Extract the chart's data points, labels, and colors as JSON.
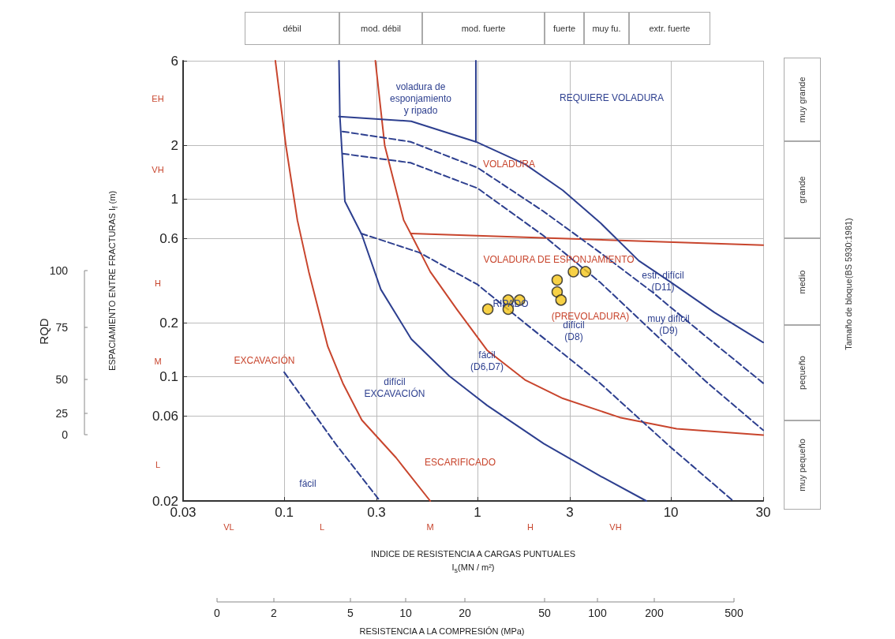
{
  "chart_data": {
    "type": "scatter",
    "xlabel": "INDICE DE RESISTENCIA A CARGAS PUNTUALES\nI$_{s}$(MN / m²)",
    "ylabel": "ESPACIAMIENTO ENTRE FRACTURAS I$_{f}$ (m)",
    "log": "xy",
    "grid": true,
    "xlim": [
      0.03,
      30
    ],
    "xticks": [
      0.03,
      0.1,
      0.3,
      1,
      3,
      10,
      30
    ],
    "ylim": [
      0.02,
      6
    ],
    "yticks": [
      0.02,
      0.06,
      0.1,
      0.2,
      0.6,
      1,
      2,
      6
    ],
    "series": [
      {
        "type": "line",
        "color": "#c8452d",
        "line_style": "solid",
        "x": [
          0.09,
          0.102,
          0.117,
          0.134,
          0.168,
          0.201,
          0.252,
          0.379,
          0.569
        ],
        "values": [
          6,
          2,
          0.76,
          0.39,
          0.148,
          0.092,
          0.057,
          0.035,
          0.02
        ]
      },
      {
        "type": "line",
        "color": "#c8452d",
        "line_style": "solid",
        "x": [
          0.296,
          0.331,
          0.415,
          0.454,
          0.569,
          0.78,
          1.12,
          1.76,
          2.76,
          5.44,
          10.7,
          30
        ],
        "values": [
          6,
          2,
          0.76,
          0.63,
          0.39,
          0.24,
          0.141,
          0.096,
          0.0755,
          0.059,
          0.051,
          0.047
        ]
      },
      {
        "type": "line",
        "color": "#c8452d",
        "line_style": "solid",
        "x": [
          0.454,
          30
        ],
        "values": [
          0.64,
          0.55
        ]
      },
      {
        "type": "line",
        "color": "#2d3f8f",
        "line_style": "solid",
        "x": [
          0.192,
          0.194,
          0.206,
          0.252,
          0.316,
          0.454,
          0.713,
          1.12,
          2.2,
          4.34,
          7.46
        ],
        "values": [
          6,
          2.94,
          0.97,
          0.63,
          0.31,
          0.163,
          0.101,
          0.069,
          0.042,
          0.0275,
          0.02
        ]
      },
      {
        "type": "line",
        "color": "#2d3f8f",
        "line_style": "solid",
        "x": [
          0.192,
          0.454,
          0.98,
          1.76,
          2.76,
          4.34,
          6.81,
          10,
          16.8,
          30
        ],
        "values": [
          2.91,
          2.74,
          2.1,
          1.57,
          1.12,
          0.73,
          0.45,
          0.34,
          0.23,
          0.156
        ]
      },
      {
        "type": "line",
        "color": "#2d3f8f",
        "line_style": "solid",
        "x": [
          0.98,
          0.98
        ],
        "values": [
          6,
          2.1
        ]
      },
      {
        "type": "line",
        "color": "#2d3f8f",
        "line_style": "dashed",
        "x": [
          0.2,
          0.45,
          1,
          2.2,
          4.3,
          8,
          15,
          30
        ],
        "values": [
          2.4,
          2.1,
          1.5,
          0.85,
          0.5,
          0.3,
          0.17,
          0.092
        ]
      },
      {
        "type": "line",
        "color": "#2d3f8f",
        "line_style": "dashed",
        "x": [
          0.2,
          0.45,
          1,
          2.2,
          4.3,
          8,
          15,
          30
        ],
        "values": [
          1.8,
          1.6,
          1.15,
          0.62,
          0.34,
          0.18,
          0.095,
          0.05
        ]
      },
      {
        "type": "line",
        "color": "#2d3f8f",
        "line_style": "dashed",
        "x": [
          0.25,
          0.5,
          1,
          1.76,
          4.3,
          10,
          21
        ],
        "values": [
          0.64,
          0.5,
          0.33,
          0.2,
          0.092,
          0.04,
          0.02
        ]
      },
      {
        "type": "line",
        "color": "#2d3f8f",
        "line_style": "dashed",
        "x": [
          0.1,
          0.184,
          0.313
        ],
        "values": [
          0.106,
          0.042,
          0.02
        ]
      },
      {
        "color": "#f5c518",
        "marker": "circle",
        "x": [
          1.13,
          1.44,
          1.44,
          1.65,
          2.58,
          2.58,
          2.7,
          3.13,
          3.62
        ],
        "values": [
          0.24,
          0.27,
          0.24,
          0.27,
          0.35,
          0.3,
          0.27,
          0.39,
          0.39
        ]
      }
    ],
    "annotations": [
      "voladura de\nesponjamiento\ny ripado",
      "REQUIERE VOLADURA",
      "VOLADURA",
      "VOLADURA DE ESPONJAMIENTO",
      "estr. difícil\n(D11)",
      "muy difícil\n(D9)",
      "difícil\n(D8)",
      "fácil\n(D6,D7)",
      "RIPADO",
      "(PREVOLADURA)",
      "EXCAVACIÓN",
      "difícil\nEXCAVACIÓN",
      "ESCARIFICADO",
      "fácil",
      "VL",
      "L",
      "M",
      "H",
      "VH",
      "EH",
      "VH",
      "H",
      "M",
      "L",
      "débil",
      "mod. débil",
      "mod. fuerte",
      "fuerte",
      "muy fu.",
      "extr. fuerte",
      "muy grande",
      "grande",
      "medio",
      "pequeño",
      "muy pequeño",
      "Tamaño de bloque(BS 5930:1981)",
      "0",
      "2",
      "5",
      "10",
      "20",
      "50",
      "100",
      "200",
      "500",
      "RESISTENCIA A LA COMPRESIÓN (MPa)",
      "100",
      "75",
      "50",
      "25",
      "0",
      "RQD"
    ]
  }
}
